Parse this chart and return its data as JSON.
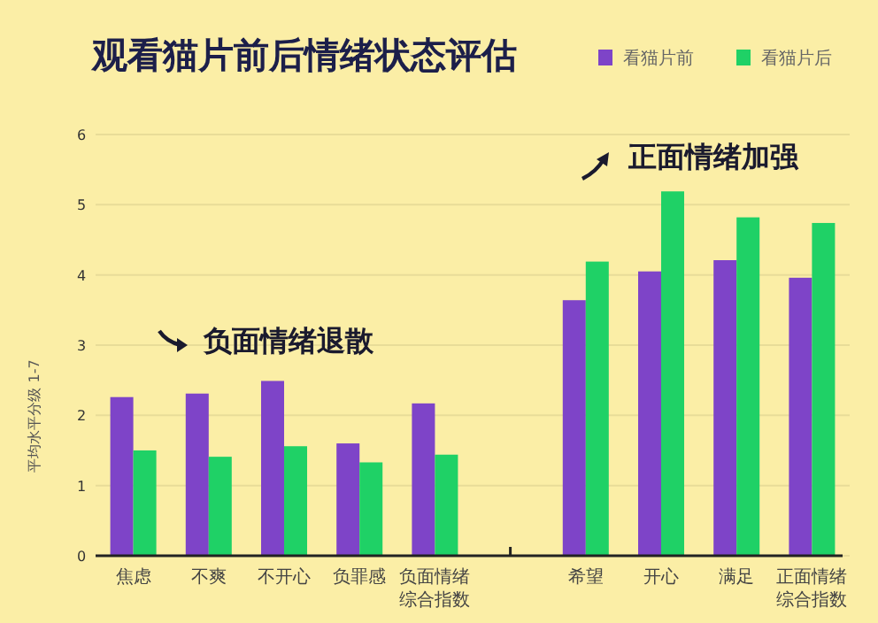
{
  "chart_data": {
    "type": "bar",
    "title": "观看猫片前后情绪状态评估",
    "ylabel": "平均水平分级 1-7",
    "categories": [
      "焦虑",
      "不爽",
      "不开心",
      "负罪感",
      "负面情绪综合指数",
      null,
      "希望",
      "开心",
      "满足",
      "正面情绪综合指数"
    ],
    "series": [
      {
        "name": "看猫片前",
        "color": "#7e44c8",
        "values": [
          2.26,
          2.31,
          2.49,
          1.6,
          2.17,
          null,
          3.64,
          4.05,
          4.21,
          3.96
        ]
      },
      {
        "name": "看猫片后",
        "color": "#1fd166",
        "values": [
          1.5,
          1.41,
          1.56,
          1.33,
          1.44,
          null,
          4.19,
          5.19,
          4.82,
          4.74
        ]
      }
    ],
    "ylim": [
      0,
      6
    ],
    "yticks": [
      0,
      1,
      2,
      3,
      4,
      5,
      6
    ],
    "grid": "y",
    "legend": "top right",
    "annotations": [
      "负面情绪退散",
      "正面情绪加强"
    ]
  }
}
